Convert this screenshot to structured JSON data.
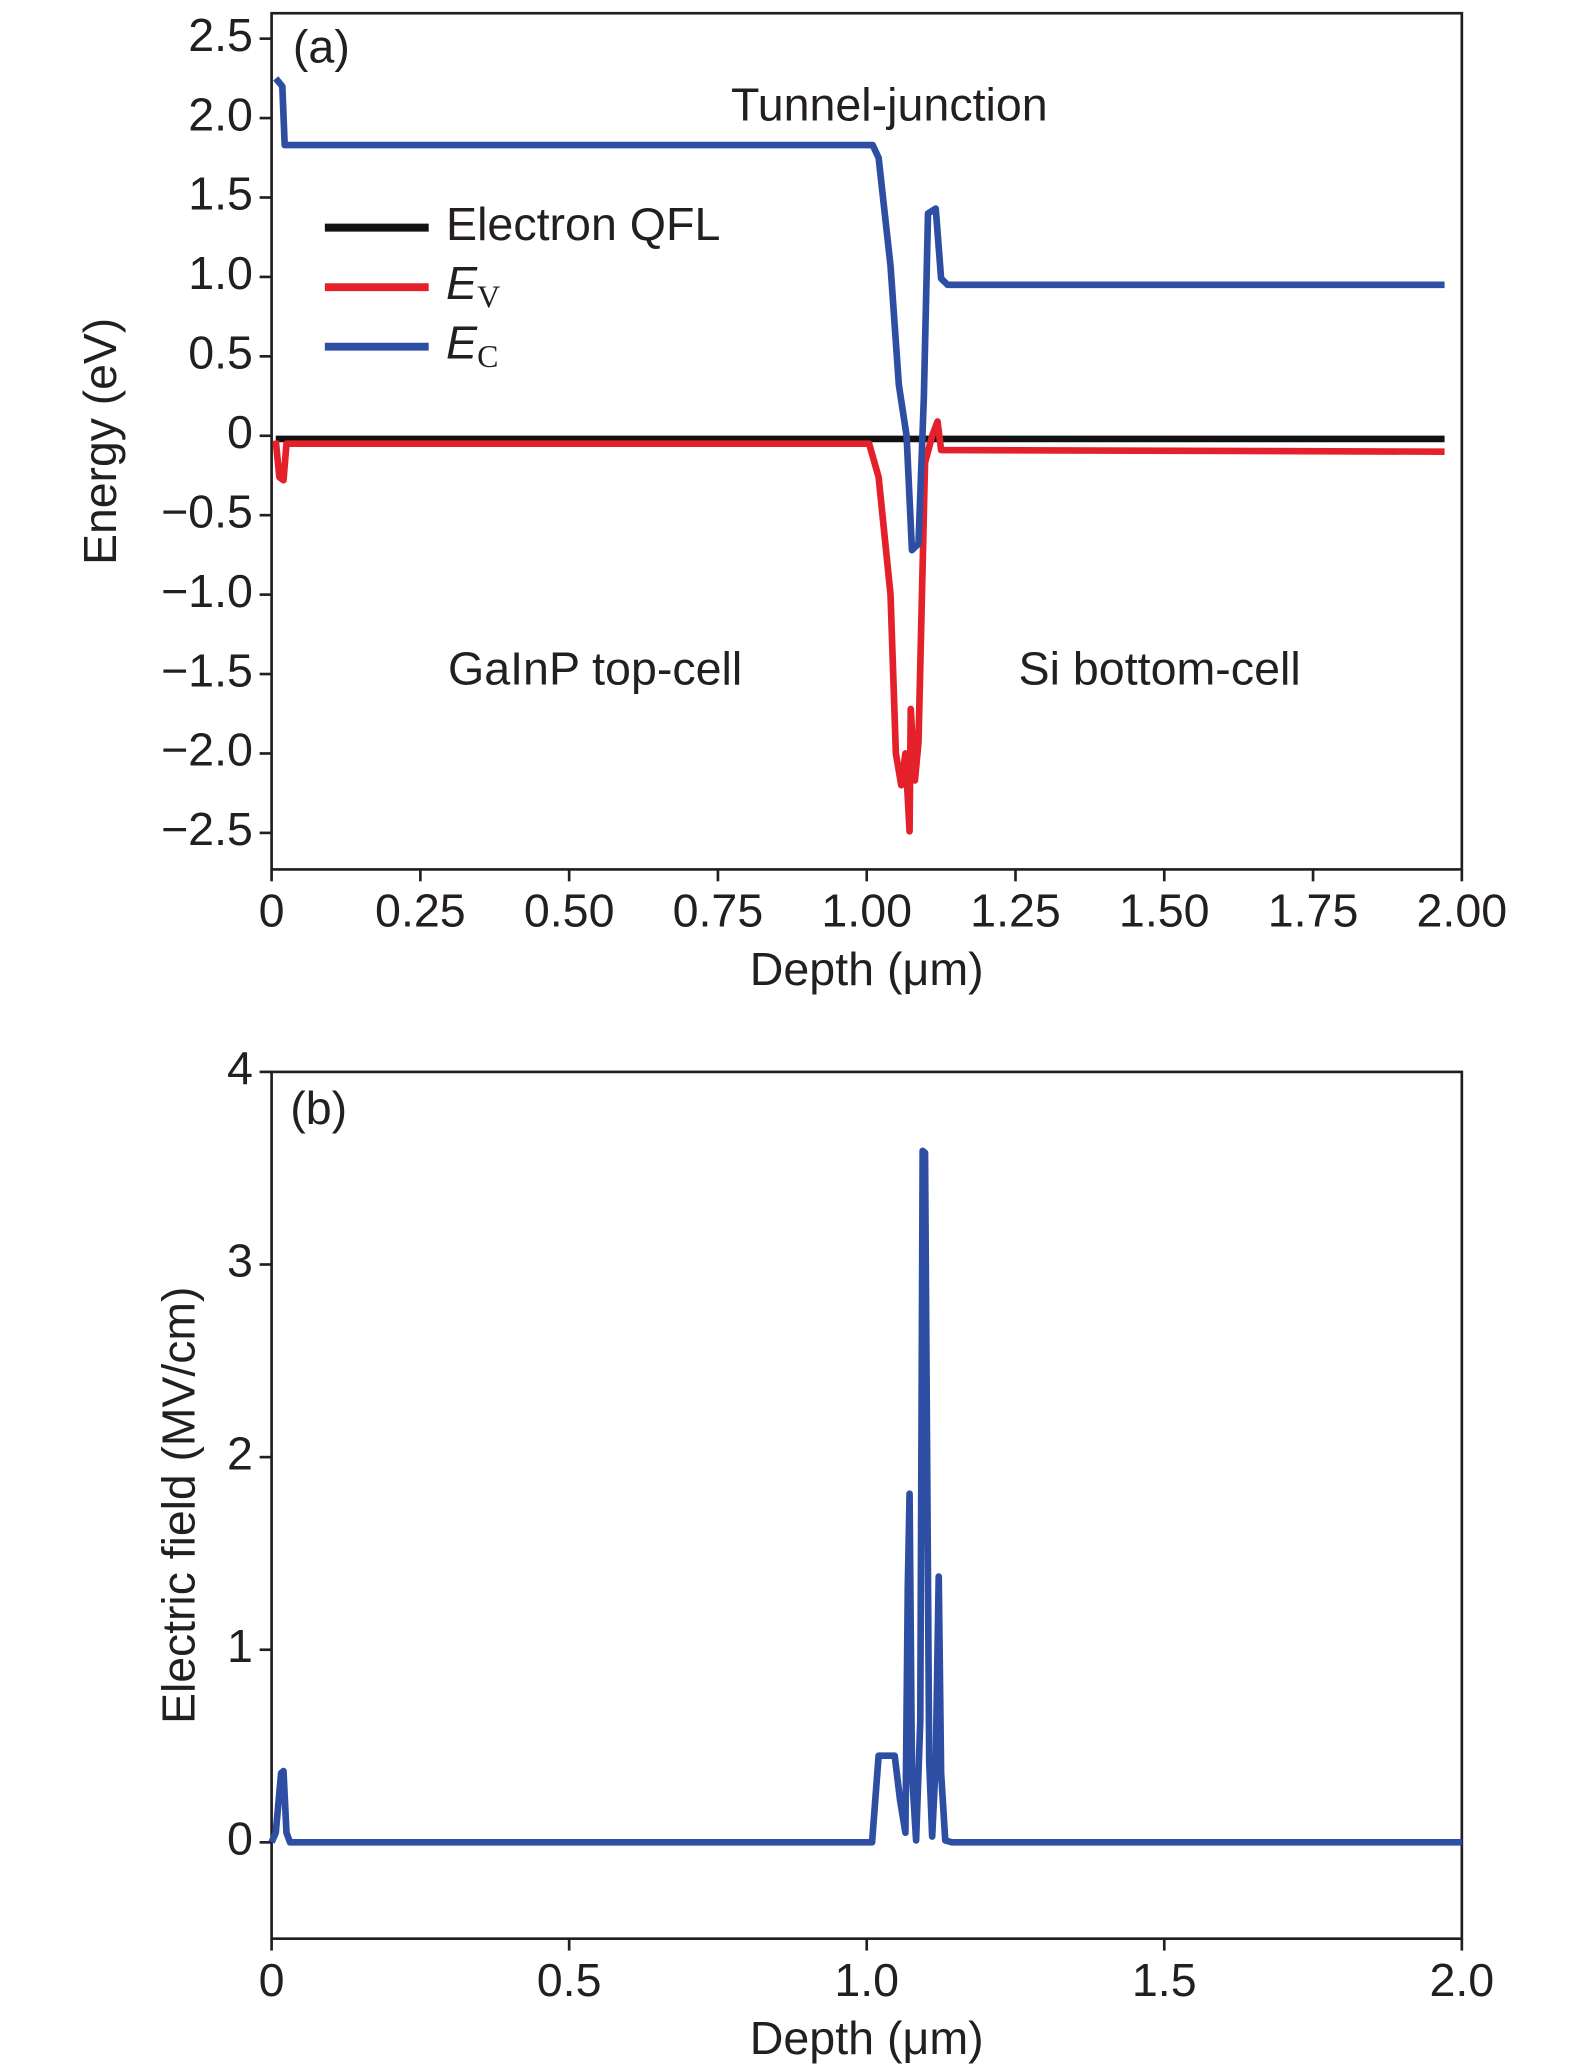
{
  "chart_data": [
    {
      "type": "line",
      "xlabel": "Depth (μm)",
      "ylabel": "Energy (eV)",
      "annotations": [
        "(a)",
        "Tunnel-junction",
        "GaInP top-cell",
        "Si bottom-cell"
      ],
      "xlim": [
        0,
        2.0
      ],
      "ylim": [
        -2.73,
        2.66
      ],
      "xticks": [
        0,
        0.25,
        {
          "value": 0.5,
          "label": "0.50"
        },
        0.75,
        {
          "value": 1.0,
          "label": "1.00"
        },
        1.25,
        {
          "value": 1.5,
          "label": "1.50"
        },
        1.75,
        {
          "value": 2.0,
          "label": "2.00"
        }
      ],
      "yticks": [
        2.5,
        {
          "value": 2.0,
          "label": "2.0"
        },
        1.5,
        {
          "value": 1.0,
          "label": "1.0"
        },
        0.5,
        0,
        {
          "value": -0.5,
          "label": "−0.5"
        },
        {
          "value": -1.0,
          "label": "−1.0"
        },
        {
          "value": -1.5,
          "label": "−1.5"
        },
        {
          "value": -2.0,
          "label": "−2.0"
        },
        {
          "value": -2.5,
          "label": "−2.5"
        }
      ],
      "legend": "upper left",
      "series": [
        {
          "name": "Electron QFL",
          "color": "#111111",
          "x": [
            0.007,
            1.971
          ],
          "values": [
            -0.02,
            -0.02
          ]
        },
        {
          "name": "EV",
          "color": "#e4202a",
          "x": [
            0.007,
            0.013,
            0.02,
            0.025,
            1.004,
            1.02,
            1.04,
            1.049,
            1.058,
            1.065,
            1.072,
            1.074,
            1.081,
            1.087,
            1.098,
            1.11,
            1.119,
            1.125,
            1.971
          ],
          "values": [
            -0.03,
            -0.26,
            -0.28,
            -0.05,
            -0.05,
            -0.26,
            -1.0,
            -2.0,
            -2.2,
            -2.0,
            -2.49,
            -1.72,
            -2.17,
            -1.93,
            -0.17,
            0,
            0.09,
            -0.09,
            -0.1
          ]
        },
        {
          "name": "EC",
          "color": "#2e4ea3",
          "x": [
            0.007,
            0.018,
            0.022,
            1.01,
            1.02,
            1.04,
            1.054,
            1.067,
            1.076,
            1.087,
            1.096,
            1.103,
            1.116,
            1.125,
            1.136,
            1.971
          ],
          "values": [
            2.25,
            2.2,
            1.83,
            1.83,
            1.75,
            1.07,
            0.32,
            0,
            -0.72,
            -0.68,
            0.24,
            1.4,
            1.43,
            0.99,
            0.95,
            0.95
          ]
        }
      ]
    },
    {
      "type": "line",
      "xlabel": "Depth (μm)",
      "ylabel": "Electric field (MV/cm)",
      "annotations": [
        "(b)"
      ],
      "xlim": [
        0,
        2.0
      ],
      "ylim": [
        -0.5,
        4
      ],
      "xticks": [
        0,
        0.5,
        {
          "value": 1.0,
          "label": "1.0"
        },
        1.5,
        {
          "value": 2.0,
          "label": "2.0"
        }
      ],
      "yticks": [
        0,
        1,
        2,
        3,
        4
      ],
      "series": [
        {
          "color": "#2e4ea3",
          "x": [
            0.0,
            0.007,
            0.016,
            0.02,
            0.025,
            0.031,
            1.009,
            1.02,
            1.047,
            1.056,
            1.065,
            1.069,
            1.072,
            1.076,
            1.083,
            1.09,
            1.094,
            1.098,
            1.105,
            1.11,
            1.116,
            1.121,
            1.125,
            1.132,
            1.143,
            2.0
          ],
          "values": [
            0,
            0.05,
            0.36,
            0.37,
            0.05,
            0,
            0,
            0.45,
            0.45,
            0.22,
            0.05,
            1.32,
            1.81,
            0.36,
            0.01,
            0.63,
            3.59,
            3.58,
            0.42,
            0.03,
            0.42,
            1.38,
            0.36,
            0.01,
            0,
            0
          ]
        }
      ]
    }
  ]
}
